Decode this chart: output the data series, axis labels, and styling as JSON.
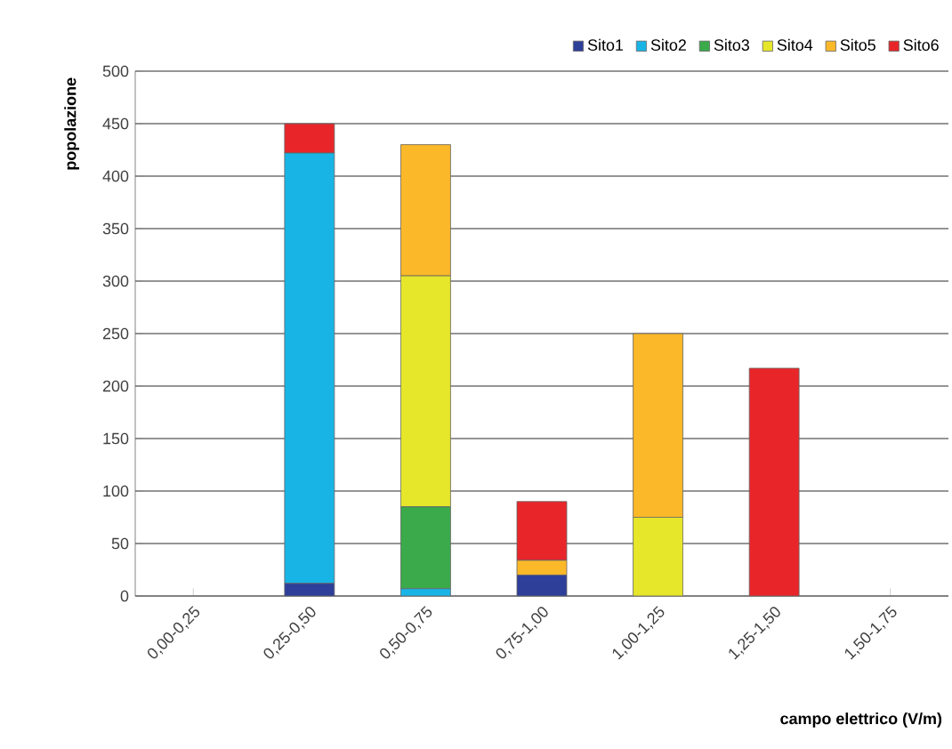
{
  "chart_data": {
    "type": "bar",
    "stacked": true,
    "xlabel": "campo elettrico (V/m)",
    "ylabel": "popolazione",
    "categories": [
      "0,00-0,25",
      "0,25-0,50",
      "0,50-0,75",
      "0,75-1,00",
      "1,00-1,25",
      "1,25-1,50",
      "1,50-1,75"
    ],
    "series": [
      {
        "name": "Sito1",
        "color": "#2e3f99",
        "values": [
          0,
          12,
          0,
          20,
          0,
          0,
          0
        ]
      },
      {
        "name": "Sito2",
        "color": "#18b4e6",
        "values": [
          0,
          410,
          7,
          0,
          0,
          0,
          0
        ]
      },
      {
        "name": "Sito3",
        "color": "#3aaa4a",
        "values": [
          0,
          0,
          78,
          0,
          0,
          0,
          0
        ]
      },
      {
        "name": "Sito4",
        "color": "#e6e62a",
        "values": [
          0,
          0,
          220,
          0,
          75,
          0,
          0
        ]
      },
      {
        "name": "Sito5",
        "color": "#fbb829",
        "values": [
          0,
          0,
          125,
          14,
          175,
          0,
          0
        ]
      },
      {
        "name": "Sito6",
        "color": "#e8262a",
        "values": [
          0,
          28,
          0,
          56,
          0,
          217,
          0
        ]
      }
    ],
    "ylim": [
      0,
      500
    ],
    "yticks": [
      0,
      50,
      100,
      150,
      200,
      250,
      300,
      350,
      400,
      450,
      500
    ],
    "grid": "y",
    "legend": "top right"
  }
}
